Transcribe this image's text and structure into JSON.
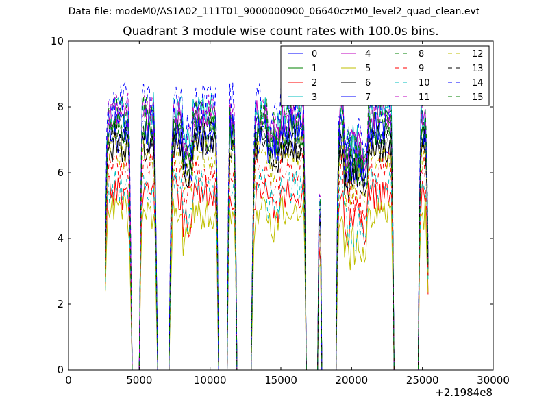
{
  "figure": {
    "suptitle": "Data file: modeM0/AS1A02_111T01_9000000900_06640cztM0_level2_quad_clean.evt",
    "title": "Quadrant 3 module wise count rates with 100.0s bins.",
    "x_offset_label": "+2.1984e8"
  },
  "chart_data": {
    "type": "line",
    "title": "Quadrant 3 module wise count rates with 100.0s bins.",
    "xlabel": "",
    "ylabel": "",
    "xlim": [
      0,
      30000
    ],
    "ylim": [
      0,
      10
    ],
    "x_ticks": [
      0,
      5000,
      10000,
      15000,
      20000,
      25000,
      30000
    ],
    "x_tick_labels": [
      "0",
      "5000",
      "10000",
      "15000",
      "20000",
      "25000",
      "30000"
    ],
    "y_ticks": [
      0,
      2,
      4,
      6,
      8,
      10
    ],
    "y_tick_labels": [
      "0",
      "2",
      "4",
      "6",
      "8",
      "10"
    ],
    "x_offset": "+2.1984e8",
    "grid": false,
    "legend_position": "top-right",
    "legend_columns": 4,
    "segments": [
      {
        "x0": 2600,
        "x1": 4400
      },
      {
        "x0": 5050,
        "x1": 6200
      },
      {
        "x0": 7200,
        "x1": 10550
      },
      {
        "x0": 11250,
        "x1": 11850
      },
      {
        "x0": 13000,
        "x1": 16750
      },
      {
        "x0": 17650,
        "x1": 17850
      },
      {
        "x0": 18950,
        "x1": 22950
      },
      {
        "x0": 24750,
        "x1": 25400
      }
    ],
    "gaps": [
      {
        "x0": 4700,
        "x1": 4850
      },
      {
        "x0": 6300,
        "x1": 7100
      },
      {
        "x0": 10700,
        "x1": 11100
      },
      {
        "x0": 12050,
        "x1": 12900
      },
      {
        "x0": 16900,
        "x1": 17500
      },
      {
        "x0": 18050,
        "x1": 18850
      },
      {
        "x0": 23100,
        "x1": 24600
      }
    ],
    "series": [
      {
        "name": "0",
        "color": "#0000ff",
        "dash": "solid",
        "level": 7.1,
        "dip": 6.2
      },
      {
        "name": "1",
        "color": "#008000",
        "dash": "solid",
        "level": 7.3,
        "dip": 6.4
      },
      {
        "name": "2",
        "color": "#ff0000",
        "dash": "solid",
        "level": 5.4,
        "dip": 4.4
      },
      {
        "name": "3",
        "color": "#00bfbf",
        "dash": "solid",
        "level": 7.9,
        "dip": 6.8
      },
      {
        "name": "4",
        "color": "#bf00bf",
        "dash": "solid",
        "level": 7.7,
        "dip": 6.6
      },
      {
        "name": "5",
        "color": "#bfbf00",
        "dash": "solid",
        "level": 4.8,
        "dip": 3.8
      },
      {
        "name": "6",
        "color": "#000000",
        "dash": "solid",
        "level": 6.8,
        "dip": 5.8
      },
      {
        "name": "7",
        "color": "#0000ff",
        "dash": "solid",
        "level": 7.4,
        "dip": 6.3
      },
      {
        "name": "8",
        "color": "#008000",
        "dash": "dashed",
        "level": 7.2,
        "dip": 6.2
      },
      {
        "name": "9",
        "color": "#ff0000",
        "dash": "dashed",
        "level": 6.1,
        "dip": 5.0
      },
      {
        "name": "10",
        "color": "#00bfbf",
        "dash": "dashed",
        "level": 5.6,
        "dip": 4.3
      },
      {
        "name": "11",
        "color": "#bf00bf",
        "dash": "dashed",
        "level": 7.9,
        "dip": 6.7
      },
      {
        "name": "12",
        "color": "#bfbf00",
        "dash": "dashed",
        "level": 6.6,
        "dip": 5.5
      },
      {
        "name": "13",
        "color": "#000000",
        "dash": "dashed",
        "level": 7.0,
        "dip": 6.0
      },
      {
        "name": "14",
        "color": "#0000ff",
        "dash": "dashed",
        "level": 8.2,
        "dip": 7.0
      },
      {
        "name": "15",
        "color": "#008000",
        "dash": "dashed",
        "level": 7.8,
        "dip": 6.7
      }
    ]
  }
}
